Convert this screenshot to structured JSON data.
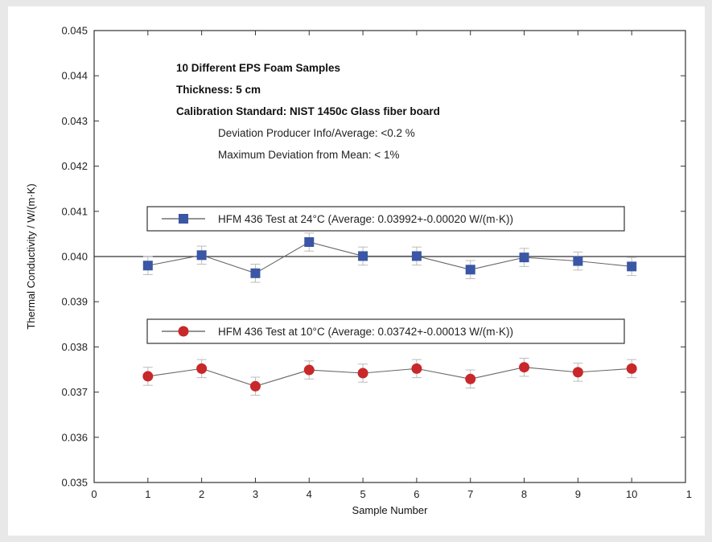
{
  "chart_data": {
    "type": "line",
    "xlabel": "Sample Number",
    "ylabel": "Thermal  Conductivity / W/(m·K)",
    "xlim": [
      0,
      11
    ],
    "ylim": [
      0.035,
      0.045
    ],
    "x_ticks": [
      "0",
      "1",
      "2",
      "3",
      "4",
      "5",
      "6",
      "7",
      "8",
      "9",
      "10",
      "1"
    ],
    "y_ticks": [
      "0.035",
      "0.036",
      "0.037",
      "0.038",
      "0.039",
      "0.040",
      "0.041",
      "0.042",
      "0.043",
      "0.044",
      "0.045"
    ],
    "reference_line": 0.04,
    "annotations": {
      "bold": [
        "10 Different EPS Foam Samples",
        "Thickness: 5 cm",
        "Calibration Standard: NIST 1450c Glass fiber board"
      ],
      "plain": [
        "Deviation Producer Info/Average: <0.2 %",
        "Maximum Deviation from Mean: < 1%"
      ]
    },
    "x": [
      1,
      2,
      3,
      4,
      5,
      6,
      7,
      8,
      9,
      10
    ],
    "series": [
      {
        "name": "HFM 436 Test at 24°C (Average: 0.03992+-0.00020 W/(m·K))",
        "marker": "square",
        "color": "#3a56a4",
        "values": [
          0.0398,
          0.04003,
          0.03963,
          0.04032,
          0.04001,
          0.04001,
          0.03971,
          0.03998,
          0.0399,
          0.03978
        ],
        "error": 0.0002
      },
      {
        "name": "HFM 436 Test at 10°C (Average: 0.03742+-0.00013 W/(m·K))",
        "marker": "circle",
        "color": "#c8282a",
        "values": [
          0.03735,
          0.03752,
          0.03713,
          0.03749,
          0.03742,
          0.03752,
          0.03729,
          0.03755,
          0.03744,
          0.03752
        ],
        "error": 0.0002
      }
    ]
  }
}
